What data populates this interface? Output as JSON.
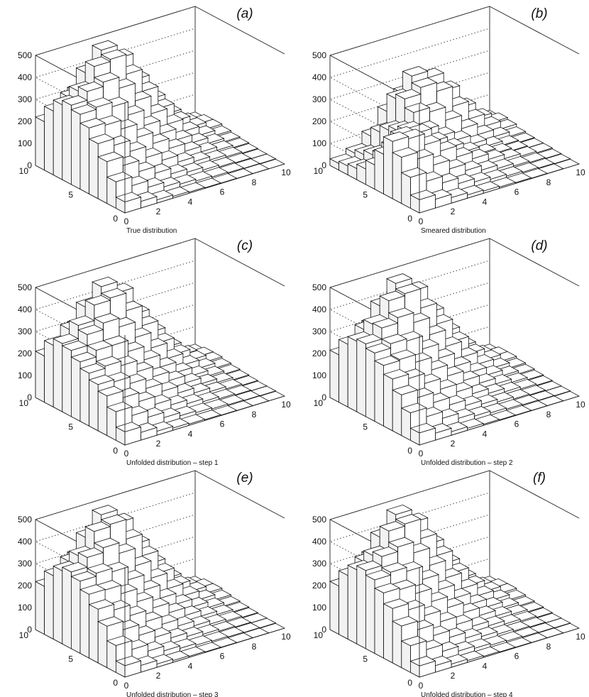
{
  "chart_data": [
    {
      "type": "lego3d",
      "panel_label": "(a)",
      "title": "True distribution",
      "zlim": [
        0,
        500
      ],
      "z_ticks": [
        0,
        100,
        200,
        300,
        400,
        500
      ],
      "x_ticks": [
        0,
        2,
        4,
        6,
        8,
        10
      ],
      "y_ticks": [
        0,
        5,
        10
      ],
      "grid": true,
      "values": [
        [
          50,
          30,
          15,
          8,
          5,
          3,
          2,
          1,
          1,
          0
        ],
        [
          120,
          80,
          50,
          30,
          20,
          12,
          8,
          5,
          3,
          2
        ],
        [
          190,
          150,
          100,
          70,
          45,
          30,
          18,
          10,
          6,
          3
        ],
        [
          250,
          220,
          170,
          120,
          85,
          55,
          35,
          20,
          12,
          6
        ],
        [
          300,
          290,
          250,
          190,
          140,
          95,
          60,
          35,
          20,
          10
        ],
        [
          340,
          350,
          330,
          270,
          200,
          140,
          90,
          55,
          30,
          15
        ],
        [
          360,
          400,
          420,
          370,
          290,
          210,
          140,
          85,
          45,
          22
        ],
        [
          340,
          380,
          470,
          480,
          390,
          290,
          190,
          110,
          60,
          30
        ],
        [
          290,
          330,
          420,
          500,
          440,
          320,
          210,
          120,
          60,
          30
        ],
        [
          220,
          250,
          310,
          360,
          320,
          230,
          150,
          85,
          45,
          20
        ]
      ]
    },
    {
      "type": "lego3d",
      "panel_label": "(b)",
      "title": "Smeared distribution",
      "zlim": [
        0,
        500
      ],
      "z_ticks": [
        0,
        100,
        200,
        300,
        400,
        500
      ],
      "x_ticks": [
        0,
        2,
        4,
        6,
        8,
        10
      ],
      "y_ticks": [
        0,
        5,
        10
      ],
      "grid": true,
      "values": [
        [
          60,
          40,
          25,
          15,
          10,
          6,
          4,
          2,
          1,
          0
        ],
        [
          140,
          100,
          70,
          45,
          30,
          20,
          12,
          7,
          4,
          2
        ],
        [
          210,
          180,
          130,
          90,
          60,
          40,
          25,
          14,
          8,
          4
        ],
        [
          260,
          250,
          200,
          150,
          100,
          70,
          45,
          26,
          15,
          8
        ],
        [
          180,
          240,
          230,
          170,
          120,
          80,
          50,
          30,
          18,
          9
        ],
        [
          110,
          170,
          220,
          200,
          150,
          110,
          70,
          40,
          22,
          12
        ],
        [
          70,
          110,
          200,
          260,
          240,
          180,
          120,
          70,
          38,
          18
        ],
        [
          50,
          90,
          180,
          300,
          330,
          290,
          200,
          120,
          65,
          30
        ],
        [
          40,
          70,
          150,
          280,
          360,
          330,
          250,
          150,
          80,
          38
        ],
        [
          30,
          55,
          110,
          200,
          260,
          240,
          180,
          110,
          60,
          28
        ]
      ]
    },
    {
      "type": "lego3d",
      "panel_label": "(c)",
      "title": "Unfolded distribution – step 1",
      "zlim": [
        0,
        500
      ],
      "z_ticks": [
        0,
        100,
        200,
        300,
        400,
        500
      ],
      "x_ticks": [
        0,
        2,
        4,
        6,
        8,
        10
      ],
      "y_ticks": [
        0,
        5,
        10
      ],
      "grid": true,
      "values": [
        [
          60,
          35,
          18,
          10,
          6,
          4,
          2,
          1,
          1,
          0
        ],
        [
          130,
          90,
          60,
          36,
          22,
          14,
          9,
          5,
          3,
          2
        ],
        [
          180,
          150,
          110,
          75,
          50,
          33,
          20,
          11,
          6,
          3
        ],
        [
          210,
          200,
          170,
          125,
          90,
          60,
          38,
          22,
          12,
          6
        ],
        [
          240,
          250,
          230,
          180,
          135,
          95,
          62,
          36,
          20,
          10
        ],
        [
          270,
          300,
          300,
          250,
          190,
          135,
          88,
          52,
          28,
          14
        ],
        [
          300,
          350,
          380,
          340,
          270,
          200,
          130,
          78,
          42,
          20
        ],
        [
          310,
          370,
          440,
          450,
          370,
          280,
          180,
          105,
          56,
          27
        ],
        [
          280,
          330,
          410,
          480,
          430,
          310,
          205,
          115,
          58,
          28
        ],
        [
          210,
          240,
          300,
          350,
          310,
          225,
          148,
          83,
          43,
          20
        ]
      ]
    },
    {
      "type": "lego3d",
      "panel_label": "(d)",
      "title": "Unfolded distribution – step 2",
      "zlim": [
        0,
        500
      ],
      "z_ticks": [
        0,
        100,
        200,
        300,
        400,
        500
      ],
      "x_ticks": [
        0,
        2,
        4,
        6,
        8,
        10
      ],
      "y_ticks": [
        0,
        5,
        10
      ],
      "grid": true,
      "values": [
        [
          55,
          32,
          16,
          9,
          5,
          3,
          2,
          1,
          1,
          0
        ],
        [
          125,
          85,
          55,
          33,
          21,
          13,
          8,
          5,
          3,
          2
        ],
        [
          185,
          150,
          105,
          72,
          47,
          31,
          19,
          10,
          6,
          3
        ],
        [
          235,
          215,
          170,
          122,
          87,
          57,
          36,
          21,
          12,
          6
        ],
        [
          275,
          280,
          245,
          188,
          138,
          95,
          61,
          35,
          20,
          10
        ],
        [
          310,
          330,
          320,
          262,
          197,
          138,
          89,
          54,
          29,
          15
        ],
        [
          330,
          380,
          405,
          360,
          282,
          207,
          136,
          82,
          44,
          21
        ],
        [
          320,
          375,
          460,
          470,
          382,
          287,
          186,
          108,
          59,
          29
        ],
        [
          285,
          330,
          415,
          495,
          437,
          317,
          208,
          118,
          59,
          29
        ],
        [
          215,
          245,
          305,
          356,
          317,
          228,
          149,
          84,
          44,
          20
        ]
      ]
    },
    {
      "type": "lego3d",
      "panel_label": "(e)",
      "title": "Unfolded distribution – step 3",
      "zlim": [
        0,
        500
      ],
      "z_ticks": [
        0,
        100,
        200,
        300,
        400,
        500
      ],
      "x_ticks": [
        0,
        2,
        4,
        6,
        8,
        10
      ],
      "y_ticks": [
        0,
        5,
        10
      ],
      "grid": true,
      "values": [
        [
          52,
          31,
          15,
          8,
          5,
          3,
          2,
          1,
          1,
          0
        ],
        [
          122,
          82,
          52,
          31,
          20,
          12,
          8,
          5,
          3,
          2
        ],
        [
          188,
          150,
          102,
          71,
          46,
          30,
          18,
          10,
          6,
          3
        ],
        [
          244,
          218,
          170,
          121,
          86,
          56,
          35,
          20,
          12,
          6
        ],
        [
          290,
          287,
          248,
          189,
          139,
          95,
          60,
          35,
          20,
          10
        ],
        [
          328,
          342,
          326,
          267,
          199,
          139,
          90,
          55,
          30,
          15
        ],
        [
          348,
          392,
          414,
          366,
          287,
          209,
          138,
          84,
          45,
          22
        ],
        [
          332,
          378,
          466,
          476,
          387,
          289,
          189,
          109,
          60,
          30
        ],
        [
          288,
          330,
          418,
          498,
          439,
          319,
          209,
          119,
          60,
          30
        ],
        [
          218,
          248,
          308,
          358,
          319,
          229,
          150,
          85,
          45,
          20
        ]
      ]
    },
    {
      "type": "lego3d",
      "panel_label": "(f)",
      "title": "Unfolded distribution – step 4",
      "zlim": [
        0,
        500
      ],
      "z_ticks": [
        0,
        100,
        200,
        300,
        400,
        500
      ],
      "x_ticks": [
        0,
        2,
        4,
        6,
        8,
        10
      ],
      "y_ticks": [
        0,
        5,
        10
      ],
      "grid": true,
      "values": [
        [
          51,
          30,
          15,
          8,
          5,
          3,
          2,
          1,
          1,
          0
        ],
        [
          121,
          81,
          51,
          30,
          20,
          12,
          8,
          5,
          3,
          2
        ],
        [
          189,
          150,
          101,
          70,
          45,
          30,
          18,
          10,
          6,
          3
        ],
        [
          247,
          219,
          170,
          120,
          85,
          55,
          35,
          20,
          12,
          6
        ],
        [
          296,
          289,
          249,
          190,
          140,
          95,
          60,
          35,
          20,
          10
        ],
        [
          334,
          346,
          328,
          269,
          200,
          140,
          90,
          55,
          30,
          15
        ],
        [
          355,
          396,
          417,
          368,
          289,
          210,
          139,
          85,
          45,
          22
        ],
        [
          336,
          379,
          468,
          478,
          389,
          290,
          190,
          110,
          60,
          30
        ],
        [
          289,
          330,
          419,
          499,
          440,
          320,
          210,
          120,
          60,
          30
        ],
        [
          219,
          249,
          309,
          359,
          320,
          230,
          150,
          85,
          45,
          20
        ]
      ]
    }
  ]
}
